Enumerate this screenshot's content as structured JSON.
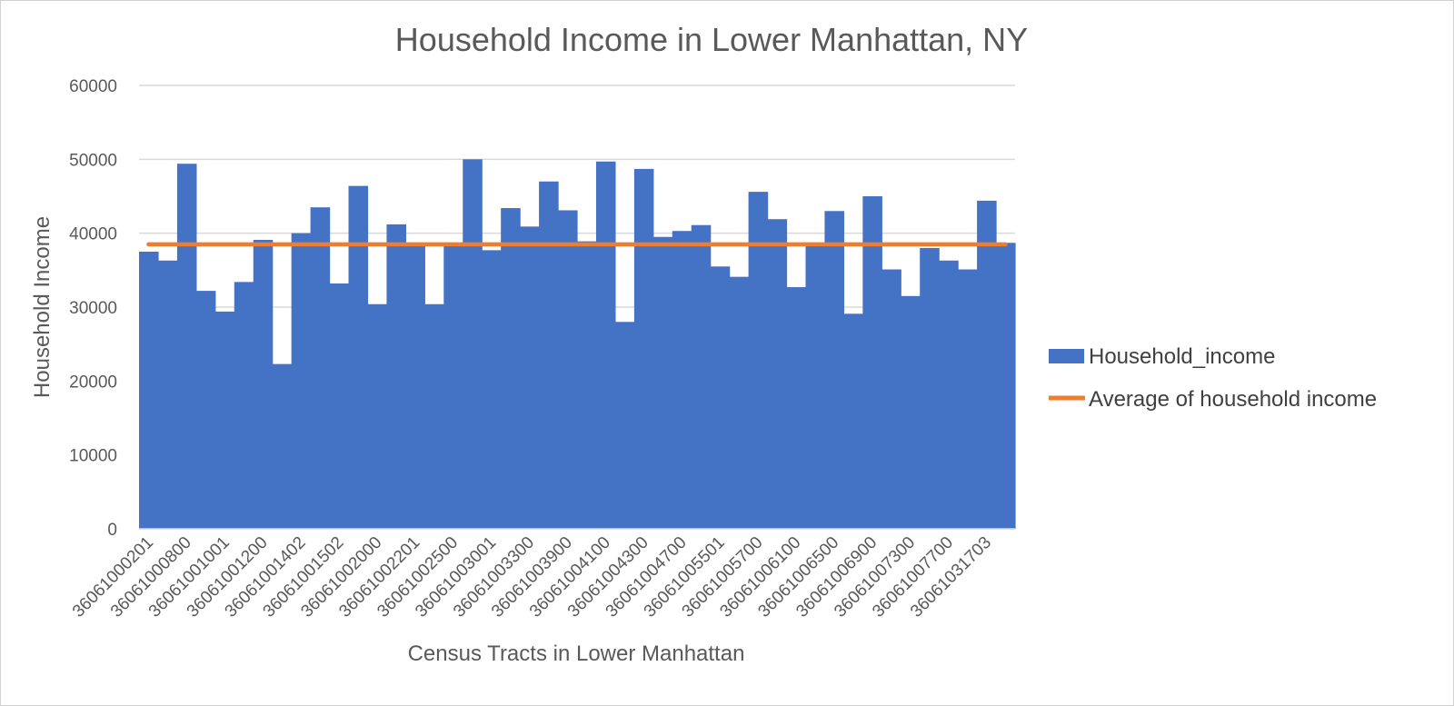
{
  "chart_data": {
    "type": "bar",
    "title": "Household Income in Lower Manhattan, NY",
    "xlabel": "Census Tracts in Lower Manhattan",
    "ylabel": "Household Income",
    "ylim": [
      0,
      60000
    ],
    "yticks": [
      0,
      10000,
      20000,
      30000,
      40000,
      50000,
      60000
    ],
    "grid": true,
    "legend_position": "right",
    "colors": {
      "bar": "#4472C4",
      "average_line": "#ED7D31",
      "grid": "#d9d9d9",
      "text": "#595959"
    },
    "x_tick_labels": [
      "36061000201",
      "36061000800",
      "36061001001",
      "36061001200",
      "36061001402",
      "36061001502",
      "36061002000",
      "36061002201",
      "36061002500",
      "36061003001",
      "36061003300",
      "36061003900",
      "36061004100",
      "36061004300",
      "36061004700",
      "36061005501",
      "36061005700",
      "36061006100",
      "36061006500",
      "36061006900",
      "36061007300",
      "36061007700",
      "36061031703"
    ],
    "series": [
      {
        "name": "Household_income",
        "type": "bar",
        "values": [
          37500,
          36300,
          49400,
          32200,
          29400,
          33400,
          39100,
          22300,
          40000,
          43500,
          33200,
          46400,
          30400,
          41200,
          38400,
          30400,
          38600,
          50000,
          37700,
          43400,
          40900,
          47000,
          43100,
          38900,
          49700,
          28000,
          48700,
          39500,
          40300,
          41100,
          35500,
          34100,
          45600,
          41900,
          32700,
          38400,
          43000,
          29100,
          45000,
          35100,
          31500,
          38000,
          36300,
          35100,
          44400,
          38700
        ]
      },
      {
        "name": "Average of household income",
        "type": "line",
        "value": 38500
      }
    ]
  }
}
